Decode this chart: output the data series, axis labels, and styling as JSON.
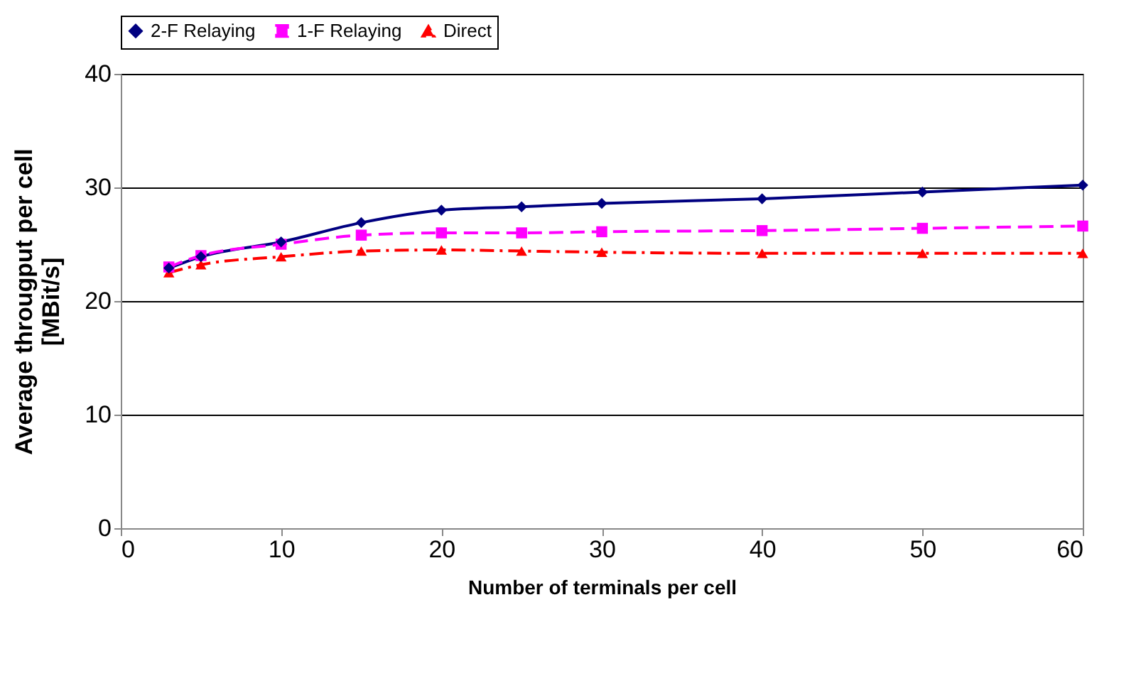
{
  "chart_data": {
    "type": "line",
    "xlabel": "Number of terminals per cell",
    "ylabel": "Average througput per cell [MBit/s]",
    "x": [
      3,
      5,
      10,
      15,
      20,
      25,
      30,
      40,
      50,
      60
    ],
    "series": [
      {
        "name": "2-F Relaying",
        "color": "#000080",
        "marker": "diamond",
        "line_style": "solid",
        "values": [
          22.9,
          23.9,
          25.2,
          26.9,
          28.0,
          28.3,
          28.6,
          29.0,
          29.6,
          30.2
        ]
      },
      {
        "name": "1-F Relaying",
        "color": "#ff00ff",
        "marker": "square",
        "line_style": "dashed",
        "values": [
          23.0,
          24.0,
          25.0,
          25.8,
          26.0,
          26.0,
          26.1,
          26.2,
          26.4,
          26.6
        ]
      },
      {
        "name": "Direct",
        "color": "#ff0000",
        "marker": "triangle",
        "line_style": "dashdot",
        "values": [
          22.5,
          23.2,
          23.9,
          24.4,
          24.5,
          24.4,
          24.3,
          24.2,
          24.2,
          24.2
        ]
      }
    ],
    "xlim": [
      0,
      60
    ],
    "xticks": [
      0,
      10,
      20,
      30,
      40,
      50,
      60
    ],
    "ylim": [
      0,
      40
    ],
    "yticks": [
      0,
      10,
      20,
      30,
      40
    ],
    "grid": "y",
    "legend": "top"
  }
}
